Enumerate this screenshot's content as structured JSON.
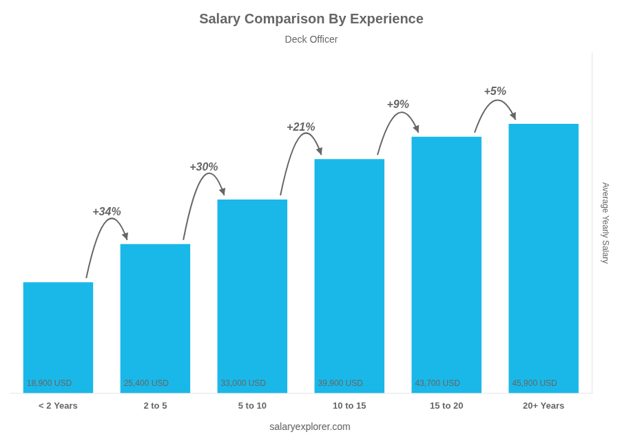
{
  "chart_data": {
    "type": "bar",
    "title": "Salary Comparison By Experience",
    "subtitle": "Deck Officer",
    "ylabel": "Average Yearly Salary",
    "source": "salaryexplorer.com",
    "categories": [
      "< 2 Years",
      "2 to 5",
      "5 to 10",
      "10 to 15",
      "15 to 20",
      "20+ Years"
    ],
    "values": [
      18900,
      25400,
      33000,
      39900,
      43700,
      45900
    ],
    "value_labels": [
      "18,900 USD",
      "25,400 USD",
      "33,000 USD",
      "39,900 USD",
      "43,700 USD",
      "45,900 USD"
    ],
    "data_labels": true,
    "annotations": [
      "+34%",
      "+30%",
      "+21%",
      "+9%",
      "+5%"
    ],
    "color": "#1ab8e8",
    "ylim": [
      0,
      58000
    ],
    "tick_labels": "x",
    "grid": false
  }
}
